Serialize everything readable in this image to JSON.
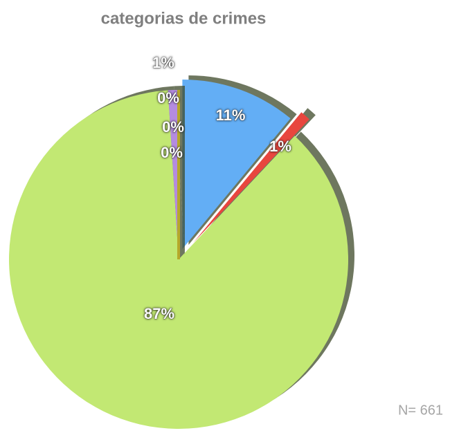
{
  "chart_data": {
    "type": "pie",
    "title": "categorias de crimes",
    "values": [
      11,
      1,
      87,
      1,
      0,
      0,
      0
    ],
    "value_labels": [
      "11%",
      "1%",
      "87%",
      "1%",
      "0%",
      "0%",
      "0%"
    ],
    "colors": [
      "#63aef5",
      "#e8463e",
      "#c2e873",
      "#b48be0",
      "#e46aa8",
      "#b8203a",
      "#b6a82a"
    ],
    "annotation": "N= 661"
  }
}
